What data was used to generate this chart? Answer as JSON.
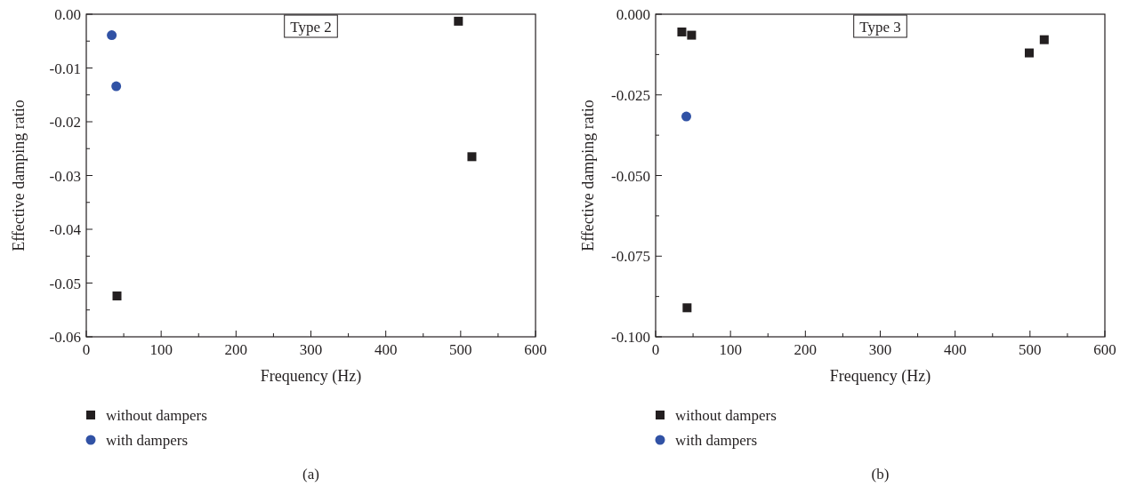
{
  "chart_data": [
    {
      "type": "scatter",
      "xlabel": "Frequency (Hz)",
      "ylabel": "Effective damping ratio",
      "annotations": [
        "Type 2",
        "(a)"
      ],
      "legend": "bottom",
      "xlim": [
        0,
        600
      ],
      "ylim": [
        -0.06,
        0
      ],
      "xticks": [
        0,
        {
          "value": 50,
          "label": null
        },
        100,
        {
          "value": 150,
          "label": null
        },
        200,
        {
          "value": 250,
          "label": null
        },
        300,
        {
          "value": 350,
          "label": null
        },
        400,
        {
          "value": 450,
          "label": null
        },
        500,
        {
          "value": 550,
          "label": null
        },
        600
      ],
      "yticks": [
        {
          "value": -0.06,
          "label": "-0.06"
        },
        {
          "value": -0.055,
          "label": null
        },
        {
          "value": -0.05,
          "label": "-0.05"
        },
        {
          "value": -0.045,
          "label": null
        },
        {
          "value": -0.04,
          "label": "-0.04"
        },
        {
          "value": -0.035,
          "label": null
        },
        {
          "value": -0.03,
          "label": "-0.03"
        },
        {
          "value": -0.025,
          "label": null
        },
        {
          "value": -0.02,
          "label": "-0.02"
        },
        {
          "value": -0.015,
          "label": null
        },
        {
          "value": -0.01,
          "label": "-0.01"
        },
        {
          "value": -0.005,
          "label": null
        },
        {
          "value": 0,
          "label": "0.00"
        }
      ],
      "series": [
        {
          "name": "without dampers",
          "color": "#231f20",
          "marker": "square",
          "x": [
            41,
            497,
            515
          ],
          "values": [
            -0.0524,
            -0.0013,
            -0.0265
          ]
        },
        {
          "name": "with dampers",
          "color": "#3152a5",
          "marker": "circle",
          "x": [
            34,
            40
          ],
          "values": [
            -0.0039,
            -0.0134
          ]
        }
      ]
    },
    {
      "type": "scatter",
      "xlabel": "Frequency (Hz)",
      "ylabel": "Effective damping ratio",
      "annotations": [
        "Type 3",
        "(b)"
      ],
      "legend": "bottom",
      "xlim": [
        0,
        600
      ],
      "ylim": [
        -0.1,
        0
      ],
      "xticks": [
        0,
        {
          "value": 50,
          "label": null
        },
        100,
        {
          "value": 150,
          "label": null
        },
        200,
        {
          "value": 250,
          "label": null
        },
        300,
        {
          "value": 350,
          "label": null
        },
        400,
        {
          "value": 450,
          "label": null
        },
        500,
        {
          "value": 550,
          "label": null
        },
        600
      ],
      "yticks": [
        {
          "value": -0.1,
          "label": "-0.100"
        },
        {
          "value": -0.0875,
          "label": null
        },
        {
          "value": -0.075,
          "label": "-0.075"
        },
        {
          "value": -0.0625,
          "label": null
        },
        {
          "value": -0.05,
          "label": "-0.050"
        },
        {
          "value": -0.0375,
          "label": null
        },
        {
          "value": -0.025,
          "label": "-0.025"
        },
        {
          "value": -0.0125,
          "label": null
        },
        {
          "value": 0,
          "label": "0.000"
        }
      ],
      "series": [
        {
          "name": "without dampers",
          "color": "#231f20",
          "marker": "square",
          "x": [
            35,
            48,
            42,
            499,
            519
          ],
          "values": [
            -0.0055,
            -0.0065,
            -0.091,
            -0.012,
            -0.0079
          ]
        },
        {
          "name": "with dampers",
          "color": "#3152a5",
          "marker": "circle",
          "x": [
            41
          ],
          "values": [
            -0.0317
          ]
        }
      ]
    }
  ]
}
